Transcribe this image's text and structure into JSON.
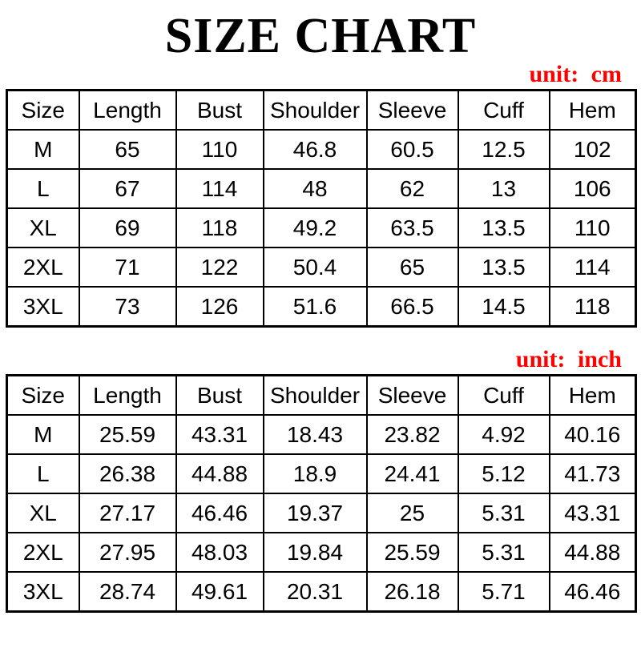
{
  "header": {
    "title": "SIZE CHART"
  },
  "colors": {
    "accent_red": "#ff0000",
    "text": "#000000",
    "table_border": "#000000",
    "background": "#ffffff"
  },
  "chart_data": [
    {
      "type": "table",
      "unit_label": "unit: cm",
      "unit": "cm",
      "columns": [
        "Size",
        "Length",
        "Bust",
        "Shoulder",
        "Sleeve",
        "Cuff",
        "Hem"
      ],
      "rows": [
        [
          "M",
          "65",
          "110",
          "46.8",
          "60.5",
          "12.5",
          "102"
        ],
        [
          "L",
          "67",
          "114",
          "48",
          "62",
          "13",
          "106"
        ],
        [
          "XL",
          "69",
          "118",
          "49.2",
          "63.5",
          "13.5",
          "110"
        ],
        [
          "2XL",
          "71",
          "122",
          "50.4",
          "65",
          "13.5",
          "114"
        ],
        [
          "3XL",
          "73",
          "126",
          "51.6",
          "66.5",
          "14.5",
          "118"
        ]
      ]
    },
    {
      "type": "table",
      "unit_label": "unit: inch",
      "unit": "inch",
      "columns": [
        "Size",
        "Length",
        "Bust",
        "Shoulder",
        "Sleeve",
        "Cuff",
        "Hem"
      ],
      "rows": [
        [
          "M",
          "25.59",
          "43.31",
          "18.43",
          "23.82",
          "4.92",
          "40.16"
        ],
        [
          "L",
          "26.38",
          "44.88",
          "18.9",
          "24.41",
          "5.12",
          "41.73"
        ],
        [
          "XL",
          "27.17",
          "46.46",
          "19.37",
          "25",
          "5.31",
          "43.31"
        ],
        [
          "2XL",
          "27.95",
          "48.03",
          "19.84",
          "25.59",
          "5.31",
          "44.88"
        ],
        [
          "3XL",
          "28.74",
          "49.61",
          "20.31",
          "26.18",
          "5.71",
          "46.46"
        ]
      ]
    }
  ]
}
